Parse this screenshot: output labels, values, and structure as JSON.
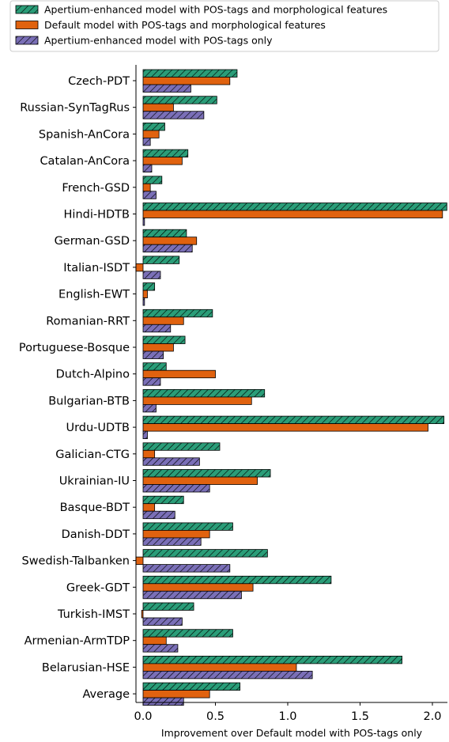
{
  "chart_data": {
    "type": "bar",
    "orientation": "horizontal",
    "categories": [
      "Czech-PDT",
      "Russian-SynTagRus",
      "Spanish-AnCora",
      "Catalan-AnCora",
      "French-GSD",
      "Hindi-HDTB",
      "German-GSD",
      "Italian-ISDT",
      "English-EWT",
      "Romanian-RRT",
      "Portuguese-Bosque",
      "Dutch-Alpino",
      "Bulgarian-BTB",
      "Urdu-UDTB",
      "Galician-CTG",
      "Ukrainian-IU",
      "Basque-BDT",
      "Danish-DDT",
      "Swedish-Talbanken",
      "Greek-GDT",
      "Turkish-IMST",
      "Armenian-ArmTDP",
      "Belarusian-HSE",
      "Average"
    ],
    "series": [
      {
        "name": "Apertium-enhanced model with POS-tags and morphological features",
        "color": "#2a9d78",
        "hatch": "diagonal",
        "values": [
          0.65,
          0.51,
          0.15,
          0.31,
          0.13,
          2.1,
          0.3,
          0.25,
          0.08,
          0.48,
          0.29,
          0.16,
          0.84,
          2.08,
          0.53,
          0.88,
          0.28,
          0.62,
          0.86,
          1.3,
          0.35,
          0.62,
          1.79,
          0.67
        ]
      },
      {
        "name": "Default model with POS-tags and morphological features",
        "color": "#e0620f",
        "hatch": "none",
        "values": [
          0.6,
          0.21,
          0.11,
          0.27,
          0.05,
          2.07,
          0.37,
          -0.05,
          0.03,
          0.28,
          0.21,
          0.5,
          0.75,
          1.97,
          0.08,
          0.79,
          0.08,
          0.46,
          -0.05,
          0.76,
          -0.01,
          0.16,
          1.06,
          0.46
        ]
      },
      {
        "name": "Apertium-enhanced model with POS-tags only",
        "color": "#7a6fb7",
        "hatch": "diagonal",
        "values": [
          0.33,
          0.42,
          0.05,
          0.06,
          0.09,
          0.01,
          0.34,
          0.12,
          0.01,
          0.19,
          0.14,
          0.12,
          0.09,
          0.03,
          0.39,
          0.46,
          0.22,
          0.4,
          0.6,
          0.68,
          0.27,
          0.24,
          1.17,
          0.28
        ]
      }
    ],
    "xlabel": "Improvement over Default model with POS-tags only",
    "ylabel": "",
    "xlim": [
      -0.05,
      2.1
    ],
    "xticks": [
      0.0,
      0.5,
      1.0,
      1.5,
      2.0
    ],
    "xtick_labels": [
      "0.0",
      "0.5",
      "1.0",
      "1.5",
      "2.0"
    ],
    "grid": false,
    "legend_position": "top"
  }
}
